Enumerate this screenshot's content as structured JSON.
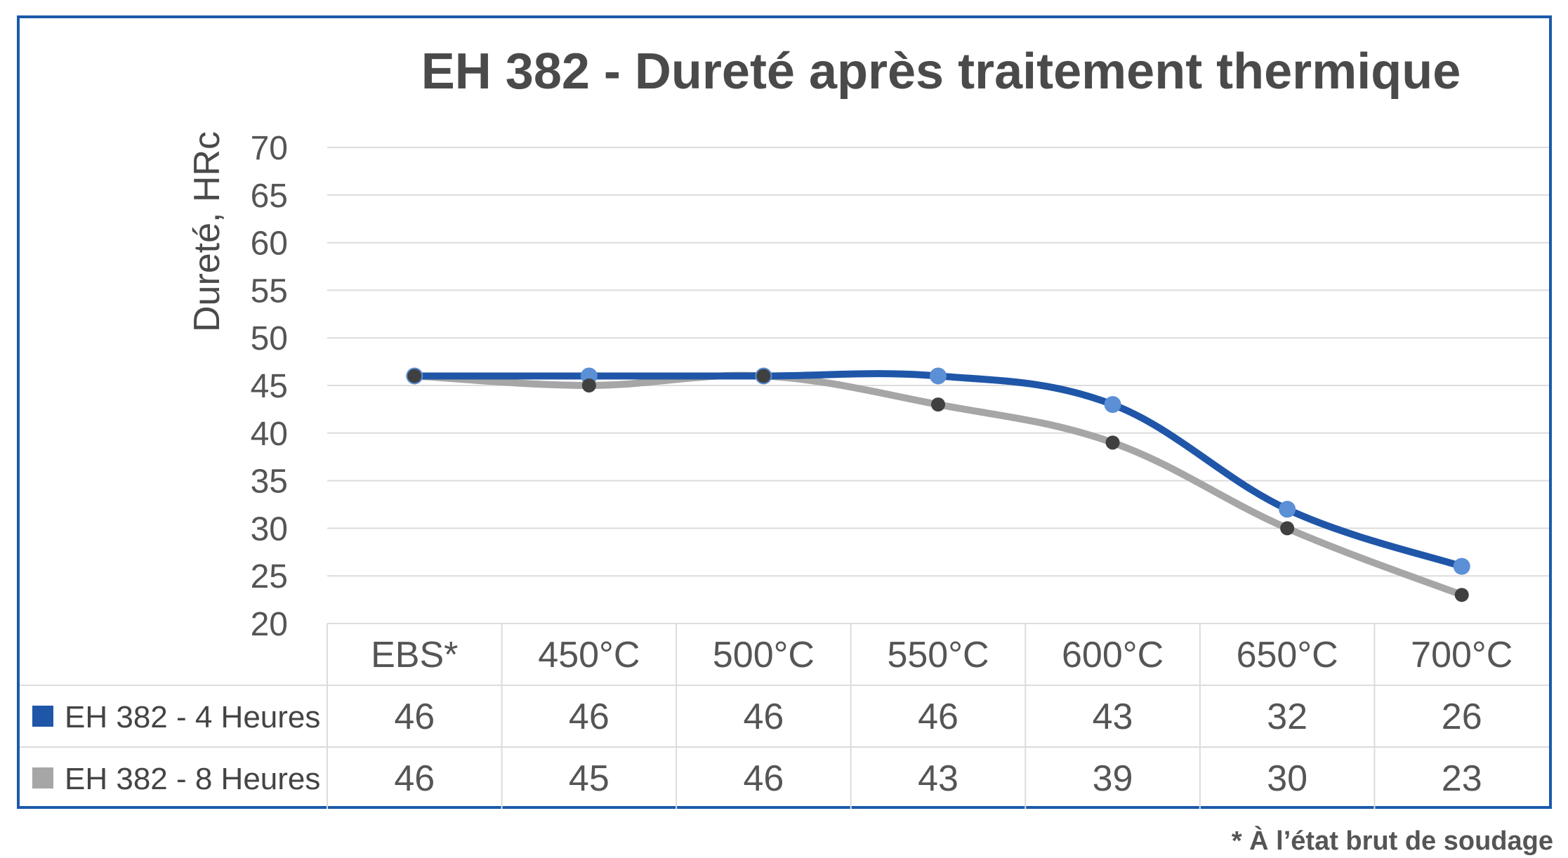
{
  "footnote": "* À l’état brut de soudage",
  "chart_data": {
    "type": "line",
    "title": "EH 382 - Dureté après traitement thermique",
    "ylabel": "Dureté, HRc",
    "xlabel": "",
    "ylim": [
      20,
      70
    ],
    "yticks": [
      "20",
      "25",
      "30",
      "35",
      "40",
      "45",
      "50",
      "55",
      "60",
      "65",
      "70"
    ],
    "categories": [
      "EBS*",
      "450°C",
      "500°C",
      "550°C",
      "600°C",
      "650°C",
      "700°C"
    ],
    "grid": true,
    "legend": "data-table",
    "series": [
      {
        "name": "EH 382 - 4 Heures",
        "values": [
          46,
          46,
          46,
          46,
          43,
          32,
          26
        ],
        "color": "#1f56a8",
        "marker_color": "#5b8fd6"
      },
      {
        "name": "EH 382 - 8 Heures",
        "values": [
          46,
          45,
          46,
          43,
          39,
          30,
          23
        ],
        "color": "#a6a6a6",
        "marker_color": "#404040"
      }
    ]
  }
}
